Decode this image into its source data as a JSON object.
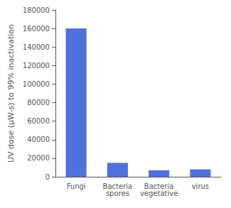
{
  "chart_data": {
    "type": "bar",
    "categories": [
      "Fungi",
      "Bacteria\nspores",
      "Bacteria\nvegetative",
      "virus"
    ],
    "values": [
      160000,
      15000,
      7000,
      8000
    ],
    "ylabel": "UV dose (μW-s) to 99% inactivation",
    "ylim": [
      0,
      180000
    ],
    "yticks": [
      0,
      20000,
      40000,
      60000,
      80000,
      100000,
      120000,
      140000,
      160000,
      180000
    ],
    "grid": false
  }
}
